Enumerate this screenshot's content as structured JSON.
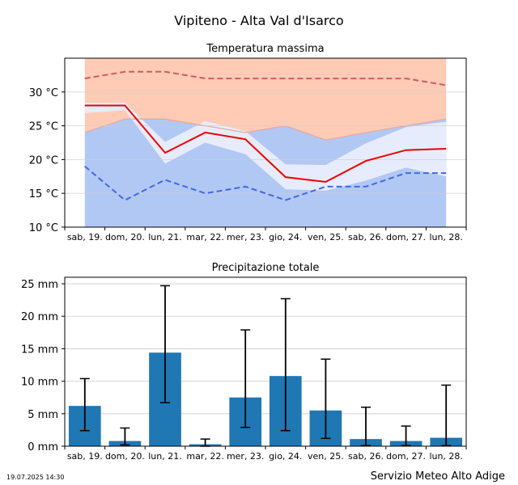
{
  "page": {
    "title": "Vipiteno - Alta Val d'Isarco",
    "timestamp": "19.07.2025 14:30",
    "credit": "Servizio Meteo Alto Adige"
  },
  "colors": {
    "max_band": "#ffcbb5",
    "min_band": "#b1c8f4",
    "mid_band": "#e6ecfb",
    "max_line": "#ee0000",
    "min_line": "#4169e1",
    "max_dashed": "#cd5c5c",
    "grid": "#cccccc",
    "bar": "#1f77b4",
    "error": "#000000"
  },
  "chart_data": [
    {
      "type": "line",
      "title": "Temperatura massima",
      "xlabel": "",
      "ylabel": "",
      "categories": [
        "sab, 19.",
        "dom, 20.",
        "lun, 21.",
        "mar, 22.",
        "mer, 23.",
        "gio, 24.",
        "ven, 25.",
        "sab, 26.",
        "dom, 27.",
        "lun, 28."
      ],
      "ylim": [
        10,
        35
      ],
      "yticks": [
        10,
        15,
        20,
        25,
        30
      ],
      "ytick_labels": [
        "10 °C",
        "15 °C",
        "20 °C",
        "25 °C",
        "30 °C"
      ],
      "grid": true,
      "series": [
        {
          "role": "max_dashed",
          "style": "dashed",
          "values": [
            32,
            33,
            33,
            32,
            32,
            32,
            32,
            32,
            32,
            31
          ]
        },
        {
          "role": "max_line",
          "style": "solid",
          "values": [
            28,
            28,
            21,
            24,
            23,
            17.4,
            16.7,
            19.8,
            21.4,
            21.6
          ]
        },
        {
          "role": "min_dashed",
          "style": "dashed",
          "values": [
            19,
            14,
            17,
            15,
            16,
            14,
            16,
            16,
            18,
            18
          ]
        },
        {
          "role": "max_band_top",
          "values": [
            35,
            35,
            35,
            35,
            35,
            35,
            35,
            35,
            35,
            35
          ]
        },
        {
          "role": "max_band_bottom",
          "values": [
            24,
            26,
            26,
            25,
            24,
            25,
            22.9,
            24,
            25,
            26
          ]
        },
        {
          "role": "spread_upper",
          "values": [
            28.4,
            28.4,
            22.6,
            25.7,
            24.2,
            19.3,
            19.2,
            22.4,
            24.8,
            25.6
          ]
        },
        {
          "role": "spread_lower",
          "values": [
            26.9,
            27.3,
            19.4,
            22.5,
            20.8,
            15.6,
            15.4,
            16.9,
            18.8,
            17.5
          ]
        }
      ]
    },
    {
      "type": "bar",
      "title": "Precipitazione totale",
      "xlabel": "",
      "ylabel": "",
      "categories": [
        "sab, 19.",
        "dom, 20.",
        "lun, 21.",
        "mar, 22.",
        "mer, 23.",
        "gio, 24.",
        "ven, 25.",
        "sab, 26.",
        "dom, 27.",
        "lun, 28."
      ],
      "ylim": [
        0,
        26
      ],
      "yticks": [
        0,
        5,
        10,
        15,
        20,
        25
      ],
      "ytick_labels": [
        "0 mm",
        "5 mm",
        "10 mm",
        "15 mm",
        "20 mm",
        "25 mm"
      ],
      "grid": true,
      "values": [
        6.2,
        0.8,
        14.4,
        0.3,
        7.5,
        10.8,
        5.5,
        1.1,
        0.8,
        1.3
      ],
      "error_low": [
        2.4,
        0.2,
        6.7,
        0.0,
        2.9,
        2.4,
        1.2,
        0.1,
        0.1,
        0.1
      ],
      "error_high": [
        10.4,
        2.8,
        24.7,
        1.1,
        17.9,
        22.7,
        13.4,
        6.0,
        3.1,
        9.4
      ]
    }
  ]
}
